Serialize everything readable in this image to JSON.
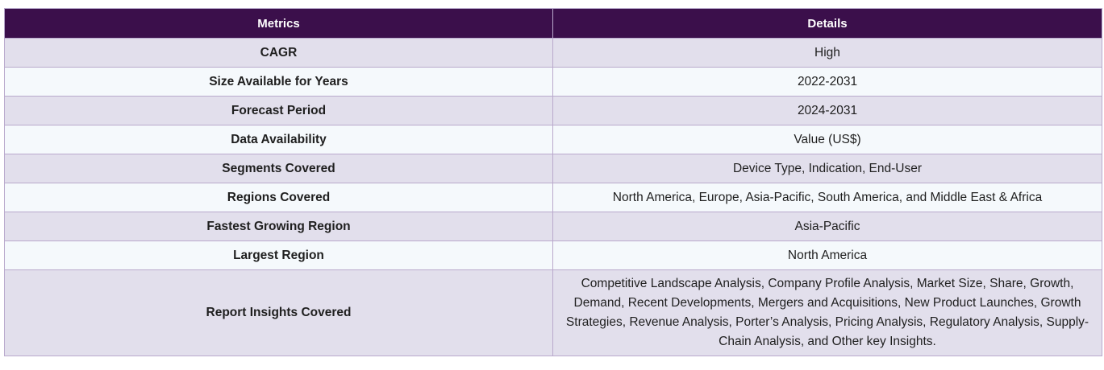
{
  "table": {
    "headers": [
      "Metrics",
      "Details"
    ],
    "rows": [
      {
        "metric": "CAGR",
        "detail": "High"
      },
      {
        "metric": "Size Available for Years",
        "detail": "2022-2031"
      },
      {
        "metric": "Forecast Period",
        "detail": "2024-2031"
      },
      {
        "metric": "Data Availability",
        "detail": "Value (US$)"
      },
      {
        "metric": "Segments Covered",
        "detail": "Device Type, Indication, End-User"
      },
      {
        "metric": "Regions Covered",
        "detail": "North America, Europe, Asia-Pacific, South America, and Middle East & Africa"
      },
      {
        "metric": "Fastest Growing Region",
        "detail": "Asia-Pacific"
      },
      {
        "metric": "Largest Region",
        "detail": "North America"
      },
      {
        "metric": "Report Insights Covered",
        "detail": "Competitive Landscape Analysis, Company Profile Analysis, Market Size, Share, Growth, Demand, Recent Developments, Mergers and Acquisitions, New Product Launches, Growth Strategies, Revenue Analysis, Porter’s Analysis, Pricing Analysis, Regulatory Analysis, Supply-Chain Analysis, and Other key Insights."
      }
    ]
  }
}
